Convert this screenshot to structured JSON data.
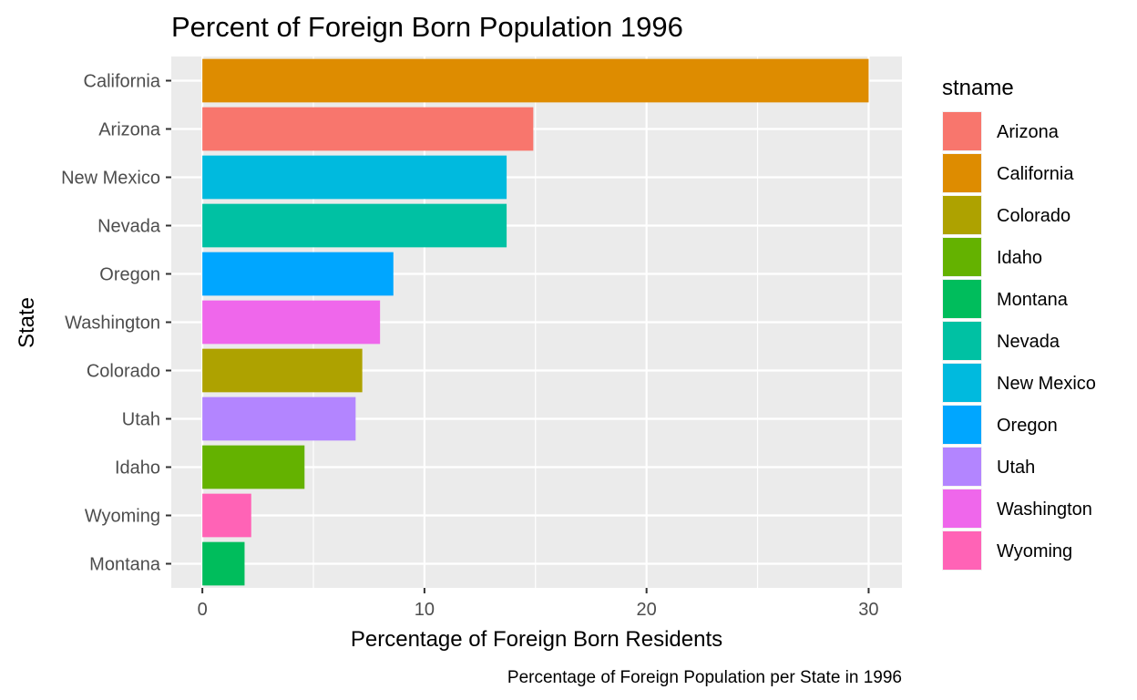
{
  "chart_data": {
    "type": "bar",
    "orientation": "horizontal",
    "title": "Percent of Foreign Born Population 1996",
    "xlabel": "Percentage of Foreign Born Residents",
    "ylabel": "State",
    "caption": "Percentage of Foreign Population per State in 1996",
    "xlim": [
      -1.4,
      31.5
    ],
    "xticks": [
      0,
      10,
      20,
      30
    ],
    "xtick_labels": [
      "0",
      "10",
      "20",
      "30"
    ],
    "grid": true,
    "legend_title": "stname",
    "legend_position": "right",
    "bars": [
      {
        "category": "California",
        "value": 30.0,
        "color": "#DE8C00"
      },
      {
        "category": "Arizona",
        "value": 14.9,
        "color": "#F8766D"
      },
      {
        "category": "New Mexico",
        "value": 13.7,
        "color": "#00BADE"
      },
      {
        "category": "Nevada",
        "value": 13.7,
        "color": "#00C1A3"
      },
      {
        "category": "Oregon",
        "value": 8.6,
        "color": "#00A6FF"
      },
      {
        "category": "Washington",
        "value": 8.0,
        "color": "#EF67EB"
      },
      {
        "category": "Colorado",
        "value": 7.2,
        "color": "#AEA200"
      },
      {
        "category": "Utah",
        "value": 6.9,
        "color": "#B385FF"
      },
      {
        "category": "Idaho",
        "value": 4.6,
        "color": "#64B200"
      },
      {
        "category": "Wyoming",
        "value": 2.2,
        "color": "#FF63B6"
      },
      {
        "category": "Montana",
        "value": 1.9,
        "color": "#00BD5C"
      }
    ],
    "legend": [
      {
        "name": "Arizona",
        "color": "#F8766D"
      },
      {
        "name": "California",
        "color": "#DE8C00"
      },
      {
        "name": "Colorado",
        "color": "#AEA200"
      },
      {
        "name": "Idaho",
        "color": "#64B200"
      },
      {
        "name": "Montana",
        "color": "#00BD5C"
      },
      {
        "name": "Nevada",
        "color": "#00C1A3"
      },
      {
        "name": "New Mexico",
        "color": "#00BADE"
      },
      {
        "name": "Oregon",
        "color": "#00A6FF"
      },
      {
        "name": "Utah",
        "color": "#B385FF"
      },
      {
        "name": "Washington",
        "color": "#EF67EB"
      },
      {
        "name": "Wyoming",
        "color": "#FF63B6"
      }
    ]
  }
}
